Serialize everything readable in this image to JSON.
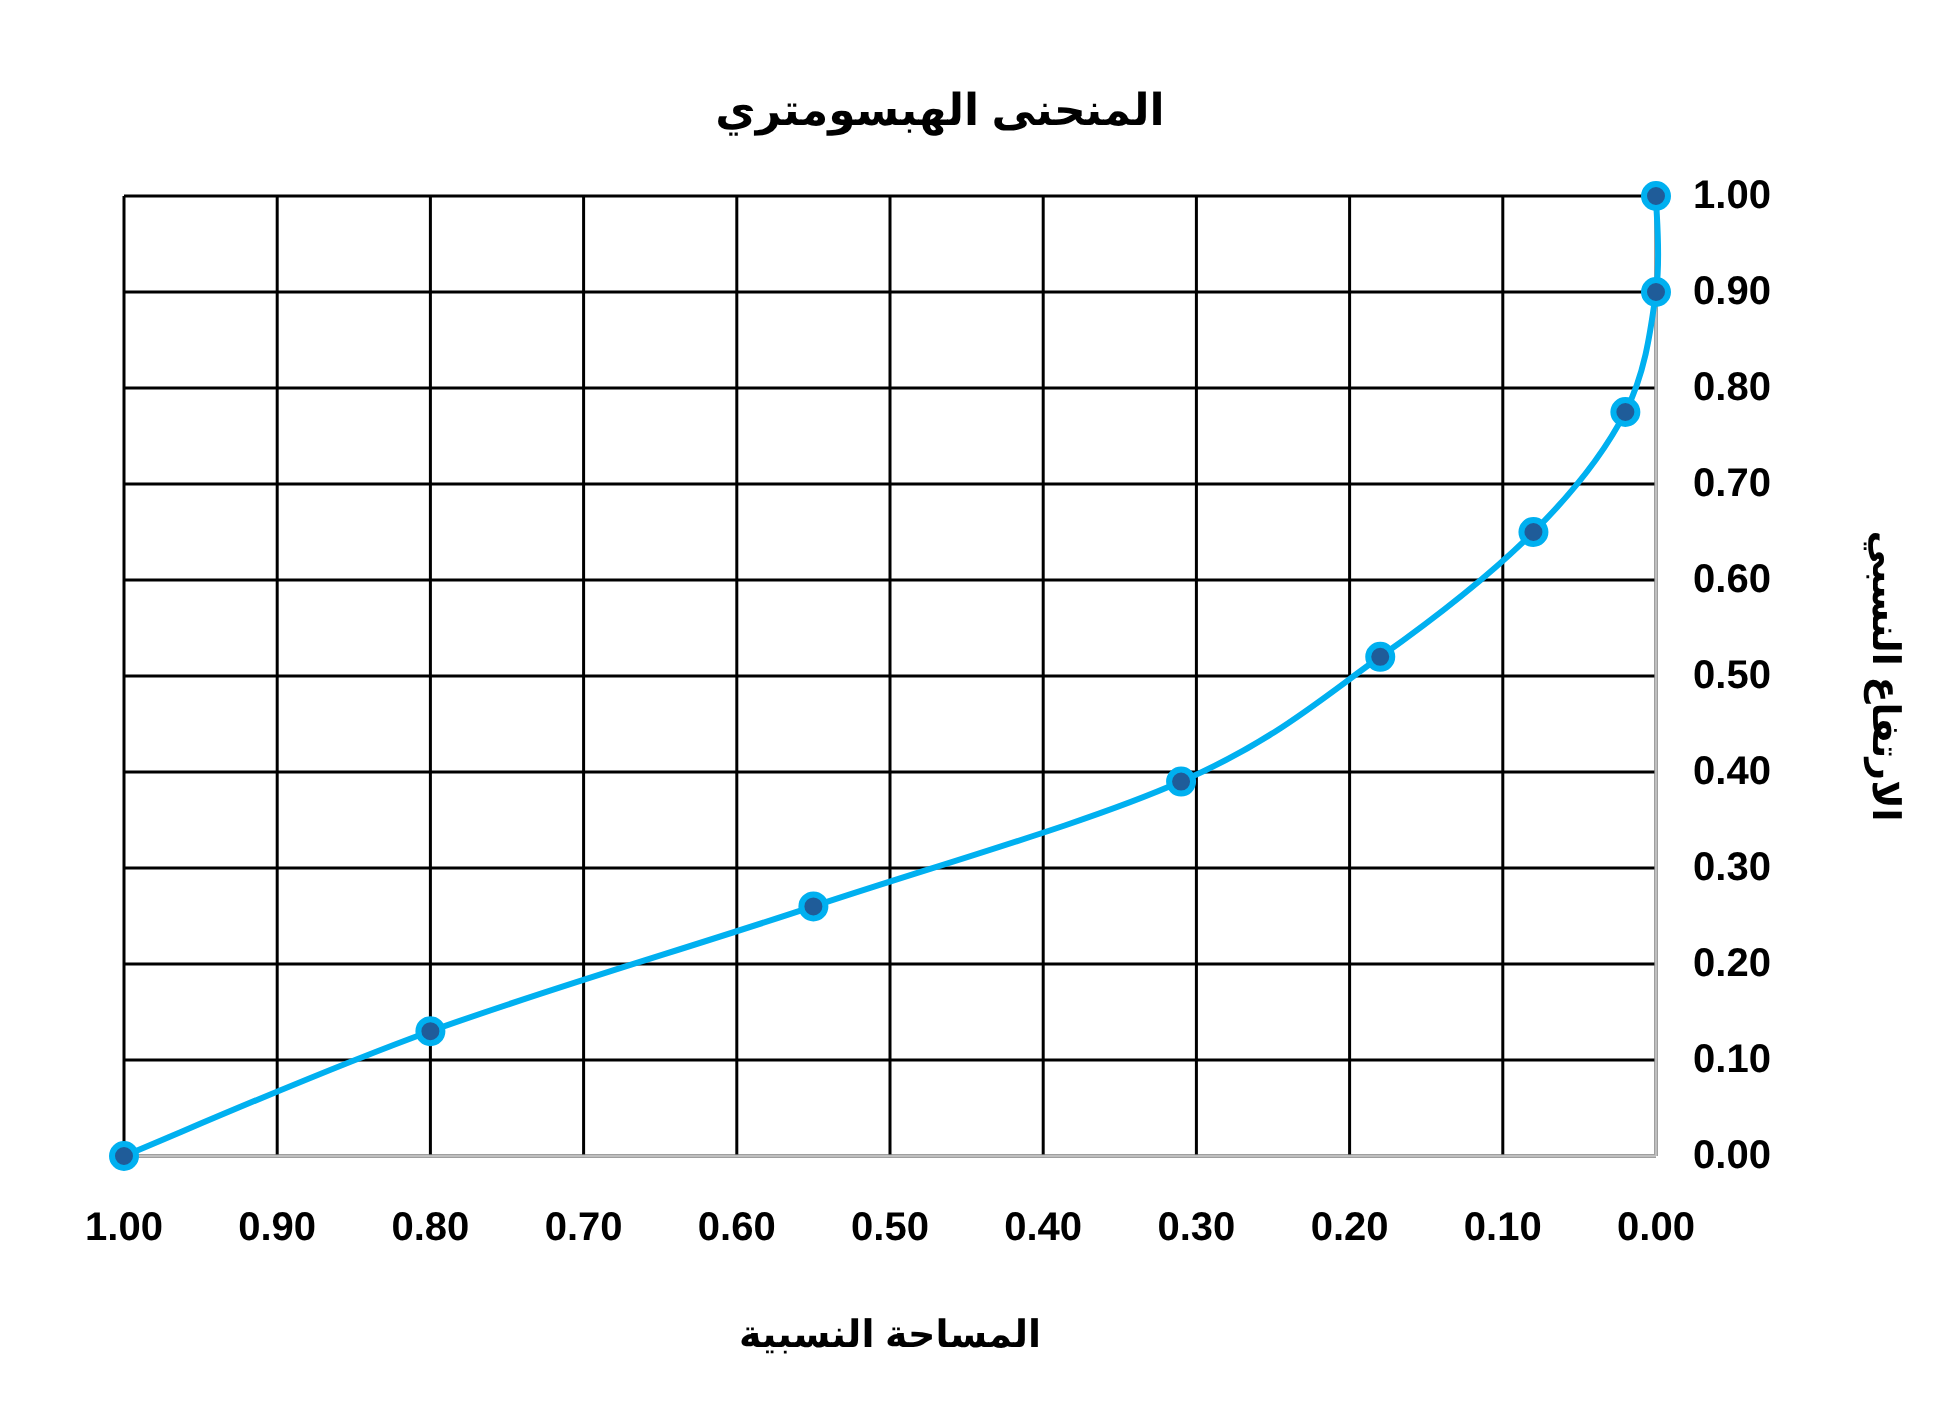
{
  "chart_data": {
    "type": "line",
    "title": "المنحنى الهبسومتري",
    "xlabel": "المساحة النسبية",
    "ylabel": "الارتفاع النسبي",
    "x": [
      1.0,
      0.8,
      0.55,
      0.31,
      0.18,
      0.08,
      0.02,
      0.0,
      0.0
    ],
    "series": [
      {
        "color": "#00b0f0",
        "values": [
          0.0,
          0.13,
          0.26,
          0.39,
          0.52,
          0.65,
          0.775,
          0.9,
          1.0
        ]
      }
    ],
    "xlim": [
      1.0,
      0.0
    ],
    "ylim": [
      0.0,
      1.0
    ],
    "xticks": [
      {
        "value": 1.0,
        "label": "1.00"
      },
      {
        "value": 0.9,
        "label": "0.90"
      },
      {
        "value": 0.8,
        "label": "0.80"
      },
      {
        "value": 0.7,
        "label": "0.70"
      },
      {
        "value": 0.6,
        "label": "0.60"
      },
      {
        "value": 0.5,
        "label": "0.50"
      },
      {
        "value": 0.4,
        "label": "0.40"
      },
      {
        "value": 0.3,
        "label": "0.30"
      },
      {
        "value": 0.2,
        "label": "0.20"
      },
      {
        "value": 0.1,
        "label": "0.10"
      },
      {
        "value": 0.0,
        "label": "0.00"
      }
    ],
    "yticks": [
      {
        "value": 0.0,
        "label": "0.00"
      },
      {
        "value": 0.1,
        "label": "0.10"
      },
      {
        "value": 0.2,
        "label": "0.20"
      },
      {
        "value": 0.3,
        "label": "0.30"
      },
      {
        "value": 0.4,
        "label": "0.40"
      },
      {
        "value": 0.5,
        "label": "0.50"
      },
      {
        "value": 0.6,
        "label": "0.60"
      },
      {
        "value": 0.7,
        "label": "0.70"
      },
      {
        "value": 0.8,
        "label": "0.80"
      },
      {
        "value": 0.9,
        "label": "0.90"
      },
      {
        "value": 1.0,
        "label": "1.00"
      }
    ],
    "grid": true,
    "marker": "circle",
    "line_style": "solid"
  }
}
